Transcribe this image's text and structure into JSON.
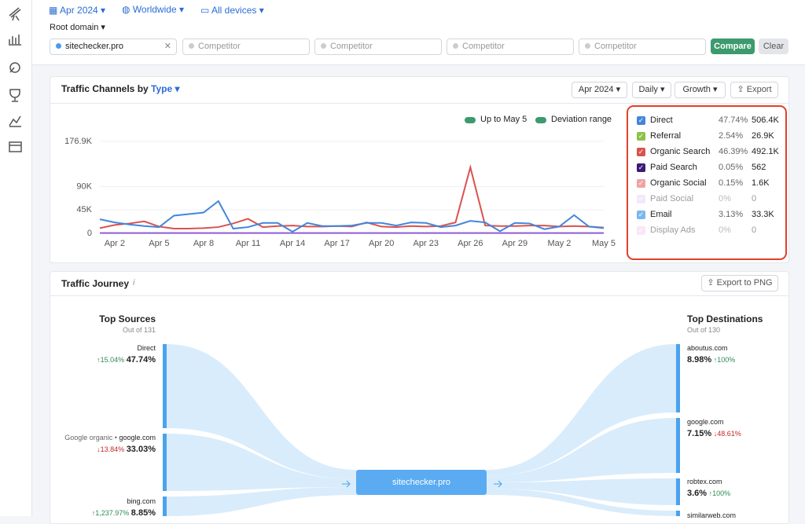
{
  "top_bar": {
    "date": "Apr 2024",
    "region": "Worldwide",
    "devices": "All devices",
    "scope": "Root domain",
    "domain": "sitechecker.pro",
    "competitors": [
      "Competitor",
      "Competitor",
      "Competitor",
      "Competitor"
    ],
    "compare": "Compare",
    "clear": "Clear"
  },
  "traffic_channels": {
    "title": "Traffic Channels by",
    "title_type": "Type",
    "controls": [
      "Apr 2024",
      "Daily",
      "Growth"
    ],
    "export": "Export",
    "toggles": [
      "Up to May 5",
      "Deviation range"
    ],
    "chart": {
      "type": "line",
      "categories": [
        null,
        "Apr 2",
        null,
        null,
        "Apr 5",
        null,
        null,
        "Apr 8",
        null,
        null,
        "Apr 11",
        null,
        null,
        "Apr 14",
        null,
        null,
        "Apr 17",
        null,
        null,
        "Apr 20",
        null,
        null,
        "Apr 23",
        null,
        null,
        "Apr 26",
        null,
        null,
        "Apr 29",
        null,
        null,
        "May 2",
        null,
        null,
        "May 5"
      ],
      "ylim": [
        0,
        176900
      ],
      "yticks": [
        0,
        {
          "value": 45000,
          "label": "45K"
        },
        {
          "value": 90000,
          "label": "90K"
        },
        {
          "value": 176900,
          "label": "176.9K"
        }
      ],
      "grid": true,
      "series": [
        {
          "color": "#8e5bd6",
          "values": [
            500,
            500,
            500,
            500,
            500,
            500,
            500,
            500,
            500,
            500,
            500,
            500,
            500,
            500,
            500,
            500,
            500,
            500,
            500,
            500,
            500,
            500,
            500,
            500,
            500,
            500,
            500,
            500,
            500,
            500,
            500,
            500,
            500,
            500,
            500
          ]
        },
        {
          "color": "#d9534f",
          "values": [
            10000,
            16000,
            19000,
            23000,
            13000,
            9000,
            9000,
            10000,
            12000,
            19000,
            28000,
            12000,
            14000,
            15000,
            13000,
            13000,
            14000,
            13000,
            21000,
            13000,
            12000,
            14000,
            13000,
            14000,
            21000,
            127000,
            15000,
            14000,
            14000,
            15000,
            15000,
            13000,
            14000,
            13000,
            11000
          ]
        },
        {
          "color": "#4286dc",
          "values": [
            27000,
            21000,
            17000,
            14000,
            12000,
            34000,
            37000,
            40000,
            62000,
            9000,
            12000,
            20000,
            20000,
            3000,
            20000,
            14000,
            14000,
            15000,
            20000,
            20000,
            15000,
            21000,
            20000,
            12000,
            15000,
            24000,
            21000,
            4000,
            20000,
            19000,
            8000,
            13000,
            35000,
            13000,
            10000
          ]
        }
      ]
    },
    "legend": [
      {
        "name": "Direct",
        "share": "47.74%",
        "total": "506.4K",
        "color": "#4286dc",
        "checked": true
      },
      {
        "name": "Referral",
        "share": "2.54%",
        "total": "26.9K",
        "color": "#8bc34a",
        "checked": true
      },
      {
        "name": "Organic Search",
        "share": "46.39%",
        "total": "492.1K",
        "color": "#d9534f",
        "checked": true
      },
      {
        "name": "Paid Search",
        "share": "0.05%",
        "total": "562",
        "color": "#3d1a78",
        "checked": true
      },
      {
        "name": "Organic Social",
        "share": "0.15%",
        "total": "1.6K",
        "color": "#f0a3a3",
        "checked": true
      },
      {
        "name": "Paid Social",
        "share": "0%",
        "total": "0",
        "color": "#e6cdf3",
        "checked": false
      },
      {
        "name": "Email",
        "share": "3.13%",
        "total": "33.3K",
        "color": "#7ab8f0",
        "checked": true
      },
      {
        "name": "Display Ads",
        "share": "0%",
        "total": "0",
        "color": "#f3c8ee",
        "checked": false
      }
    ]
  },
  "traffic_journey": {
    "title": "Traffic Journey",
    "info": "i",
    "export": "Export to PNG",
    "center": "sitechecker.pro",
    "sources_title": "Top Sources",
    "sources_count": "Out of 131",
    "sources": [
      {
        "label": "Direct",
        "change": "↑15.04%",
        "share": "47.74%",
        "up": true
      },
      {
        "prefix": "Google organic •",
        "label": "google.com",
        "change": "↓13.84%",
        "share": "33.03%",
        "up": false
      },
      {
        "label": "bing.com",
        "change": "↑1,237.97%",
        "share": "8.85%",
        "up": true
      }
    ],
    "destinations_title": "Top Destinations",
    "destinations_count": "Out of 130",
    "destinations": [
      {
        "label": "aboutus.com",
        "share": "8.98%",
        "change": "↑100%",
        "up": true
      },
      {
        "label": "google.com",
        "share": "7.15%",
        "change": "↓48.61%",
        "up": false
      },
      {
        "label": "robtex.com",
        "share": "3.6%",
        "change": "↑100%",
        "up": true
      },
      {
        "label": "similarweb.com"
      }
    ]
  }
}
